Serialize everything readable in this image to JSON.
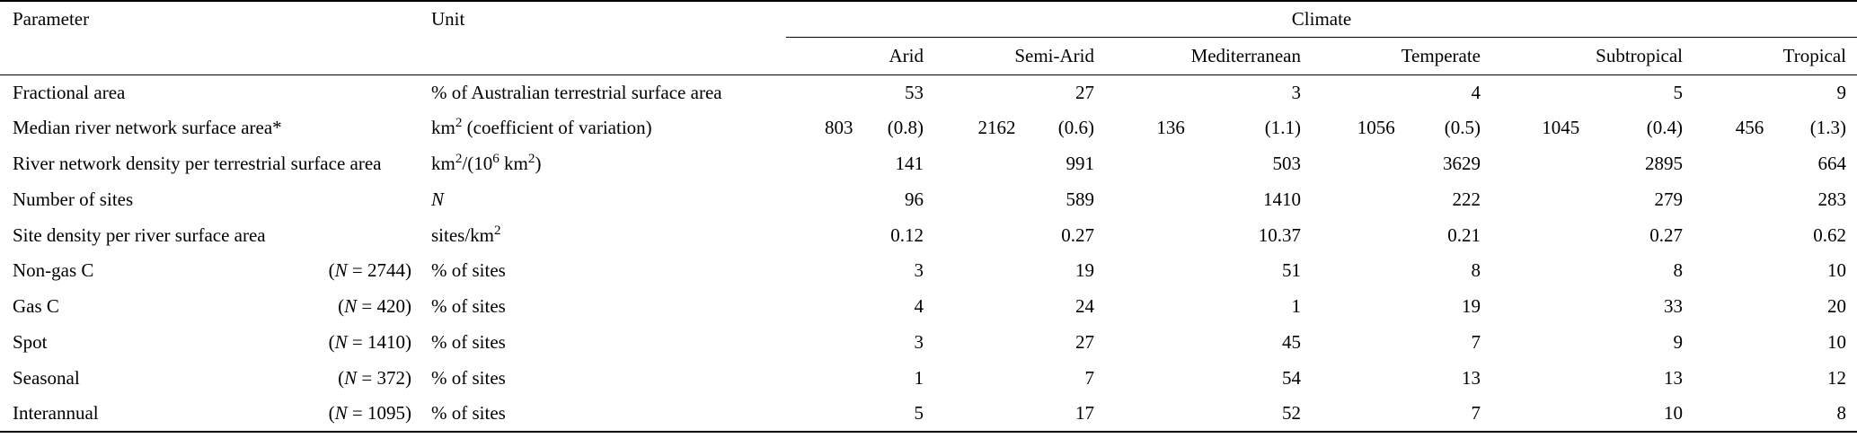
{
  "page": {
    "background": "#ffffff",
    "text_color": "#000000"
  },
  "table": {
    "header": {
      "parameter": "Parameter",
      "unit": "Unit",
      "climate_group": "Climate",
      "climate_columns": [
        "Arid",
        "Semi-Arid",
        "Mediterranean",
        "Temperate",
        "Subtropical",
        "Tropical"
      ]
    },
    "rows": [
      {
        "parameter": "Fractional area",
        "n_label": "",
        "unit": "% of Australian terrestrial surface area",
        "values": [
          "53",
          "27",
          "3",
          "4",
          "5",
          "9"
        ],
        "split_values": false
      },
      {
        "parameter": "Median river network surface area*",
        "n_label": "",
        "unit": "km^{2} (coefficient of variation)",
        "values": [
          "803 (0.8)",
          "2162 (0.6)",
          "136 (1.1)",
          "1056 (0.5)",
          "1045 (0.4)",
          "456 (1.3)"
        ],
        "split_values": true
      },
      {
        "parameter": "River network density per terrestrial surface area",
        "n_label": "",
        "unit": "km^{2}/(10^{6} km^{2})",
        "values": [
          "141",
          "991",
          "503",
          "3629",
          "2895",
          "664"
        ],
        "split_values": false
      },
      {
        "parameter": "Number of sites",
        "n_label": "",
        "unit": "N",
        "values": [
          "96",
          "589",
          "1410",
          "222",
          "279",
          "283"
        ],
        "split_values": false
      },
      {
        "parameter": "Site density per river surface area",
        "n_label": "",
        "unit": "sites/km^{2}",
        "values": [
          "0.12",
          "0.27",
          "10.37",
          "0.21",
          "0.27",
          "0.62"
        ],
        "split_values": false
      },
      {
        "parameter": "Non-gas C",
        "n_label": "(N = 2744)",
        "unit": "% of sites",
        "values": [
          "3",
          "19",
          "51",
          "8",
          "8",
          "10"
        ],
        "split_values": false
      },
      {
        "parameter": "Gas C",
        "n_label": "(N = 420)",
        "unit": "% of sites",
        "values": [
          "4",
          "24",
          "1",
          "19",
          "33",
          "20"
        ],
        "split_values": false
      },
      {
        "parameter": "Spot",
        "n_label": "(N = 1410)",
        "unit": "% of sites",
        "values": [
          "3",
          "27",
          "45",
          "7",
          "9",
          "10"
        ],
        "split_values": false
      },
      {
        "parameter": "Seasonal",
        "n_label": "(N = 372)",
        "unit": "% of sites",
        "values": [
          "1",
          "7",
          "54",
          "13",
          "13",
          "12"
        ],
        "split_values": false
      },
      {
        "parameter": "Interannual",
        "n_label": "(N = 1095)",
        "unit": "% of sites",
        "values": [
          "5",
          "17",
          "52",
          "7",
          "10",
          "8"
        ],
        "split_values": false
      }
    ]
  }
}
